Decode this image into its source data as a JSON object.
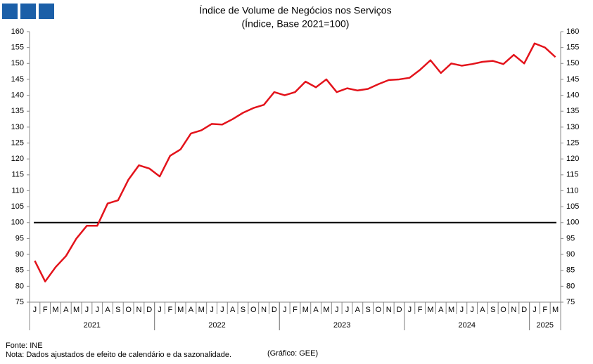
{
  "chart_data": {
    "type": "line",
    "title": "Índice de Volume de Negócios nos Serviços",
    "subtitle": "(Índice, Base 2021=100)",
    "categories": [
      "J",
      "F",
      "M",
      "A",
      "M",
      "J",
      "J",
      "A",
      "S",
      "O",
      "N",
      "D",
      "J",
      "F",
      "M",
      "A",
      "M",
      "J",
      "J",
      "A",
      "S",
      "O",
      "N",
      "D",
      "J",
      "F",
      "M",
      "A",
      "M",
      "J",
      "J",
      "A",
      "S",
      "O",
      "N",
      "D",
      "J",
      "F",
      "M",
      "A",
      "M",
      "J",
      "J",
      "A",
      "S",
      "O",
      "N",
      "D",
      "J",
      "F",
      "M"
    ],
    "year_groups": [
      {
        "label": "2021",
        "count": 12
      },
      {
        "label": "2022",
        "count": 12
      },
      {
        "label": "2023",
        "count": 12
      },
      {
        "label": "2024",
        "count": 12
      },
      {
        "label": "2025",
        "count": 3
      }
    ],
    "series": [
      {
        "name": "Índice",
        "color": "#e3131b",
        "values": [
          88,
          81.5,
          86,
          89.5,
          95,
          99,
          99,
          106,
          107,
          113.5,
          118,
          117,
          114.5,
          121,
          123,
          128,
          129,
          131,
          130.8,
          132.5,
          134.5,
          136,
          137,
          141,
          140,
          141,
          144.3,
          142.5,
          145,
          141,
          142.2,
          141.5,
          142,
          143.5,
          144.8,
          145,
          145.5,
          148,
          151,
          147,
          150,
          149.3,
          149.8,
          150.5,
          150.8,
          149.8,
          152.7,
          150,
          156.3,
          155,
          152
        ]
      }
    ],
    "reference_line": 100,
    "ylim": [
      75,
      160
    ],
    "yticks": [
      75,
      80,
      85,
      90,
      95,
      100,
      105,
      110,
      115,
      120,
      125,
      130,
      135,
      140,
      145,
      150,
      155,
      160
    ],
    "y2lim": [
      75,
      160
    ],
    "y2ticks": [
      75,
      80,
      85,
      90,
      95,
      100,
      105,
      110,
      115,
      120,
      125,
      130,
      135,
      140,
      145,
      150,
      155,
      160
    ],
    "source": "Fonte: INE",
    "note": "Nota: Dados ajustados de efeito de calendário e da sazonalidade.",
    "credit": "(Gráfico: GEE)"
  }
}
